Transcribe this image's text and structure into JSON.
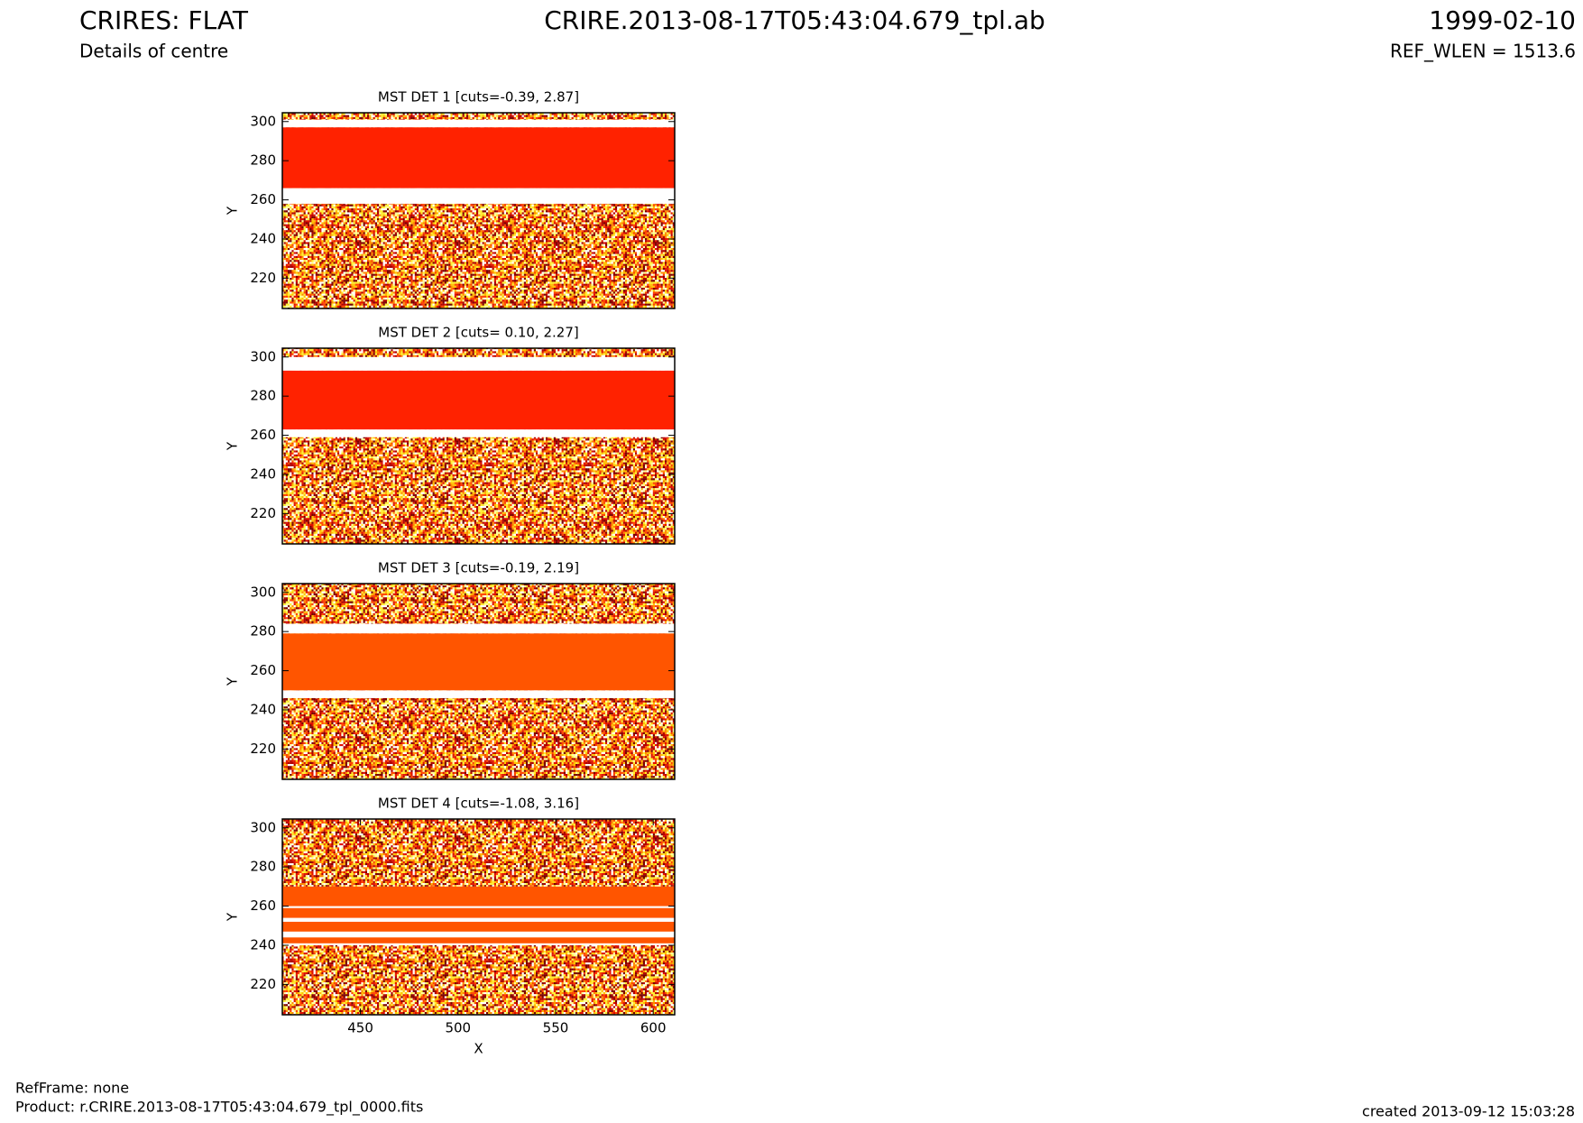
{
  "header": {
    "title": "CRIRES: FLAT",
    "subtitle": "Details of centre",
    "file": "CRIRE.2013-08-17T05:43:04.679_tpl.ab",
    "date": "1999-02-10",
    "ref_wlen": "REF_WLEN = 1513.6"
  },
  "footer": {
    "refframe": "RefFrame: none",
    "product": "Product: r.CRIRE.2013-08-17T05:43:04.679_tpl_0000.fits",
    "created": "created 2013-09-12 15:03:28"
  },
  "chart_data": [
    {
      "type": "heatmap",
      "title": "MST DET 1 [cuts=-0.39, 2.87]",
      "ylabel": "Y",
      "xlim": [
        410,
        611
      ],
      "ylim": [
        204.5,
        304.5
      ],
      "yticks": [
        220,
        240,
        260,
        280,
        300
      ],
      "bands": [
        {
          "y": [
            297,
            301
          ],
          "color": "#ffffff"
        },
        {
          "y": [
            258,
            266
          ],
          "color": "#ffffff"
        },
        {
          "y": [
            266,
            297
          ],
          "color": "#ff2200"
        }
      ]
    },
    {
      "type": "heatmap",
      "title": "MST DET 2 [cuts= 0.10, 2.27]",
      "ylabel": "Y",
      "xlim": [
        410,
        611
      ],
      "ylim": [
        204.5,
        304.5
      ],
      "yticks": [
        220,
        240,
        260,
        280,
        300
      ],
      "bands": [
        {
          "y": [
            293,
            300
          ],
          "color": "#ffffff"
        },
        {
          "y": [
            259,
            263
          ],
          "color": "#ffffff"
        },
        {
          "y": [
            263,
            293
          ],
          "color": "#ff2200"
        }
      ]
    },
    {
      "type": "heatmap",
      "title": "MST DET 3 [cuts=-0.19, 2.19]",
      "ylabel": "Y",
      "xlim": [
        410,
        611
      ],
      "ylim": [
        204.5,
        304.5
      ],
      "yticks": [
        220,
        240,
        260,
        280,
        300
      ],
      "bands": [
        {
          "y": [
            279,
            284
          ],
          "color": "#ffffff"
        },
        {
          "y": [
            246,
            250
          ],
          "color": "#ffffff"
        },
        {
          "y": [
            250,
            279
          ],
          "color": "#ff5500"
        }
      ]
    },
    {
      "type": "heatmap",
      "title": "MST DET 4 [cuts=-1.08, 3.16]",
      "ylabel": "Y",
      "xlabel": "X",
      "xlim": [
        410,
        611
      ],
      "ylim": [
        204.5,
        304.5
      ],
      "xticks": [
        450,
        500,
        550,
        600
      ],
      "yticks": [
        220,
        240,
        260,
        280,
        300
      ],
      "bands": [
        {
          "y": [
            240,
            270
          ],
          "color": "#ffffff"
        },
        {
          "y": [
            260,
            270
          ],
          "color": "#ff5500"
        },
        {
          "y": [
            254,
            259
          ],
          "color": "#ff5500"
        },
        {
          "y": [
            247,
            252
          ],
          "color": "#ff5500"
        },
        {
          "y": [
            241,
            244
          ],
          "color": "#ff5500"
        }
      ]
    }
  ]
}
